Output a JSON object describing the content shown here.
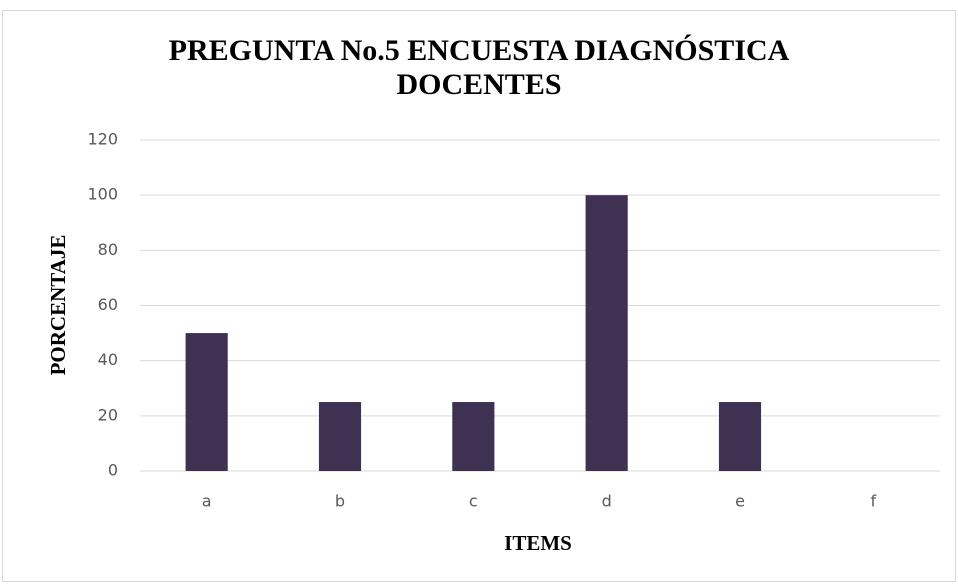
{
  "chart_data": {
    "type": "bar",
    "title": "PREGUNTA No.5 ENCUESTA DIAGNÓSTICA DOCENTES",
    "x_label": "ITEMS",
    "y_label": "PORCENTAJE",
    "categories": [
      "a",
      "b",
      "c",
      "d",
      "e",
      "f"
    ],
    "values": [
      50,
      25,
      25,
      100,
      25,
      0
    ],
    "color": "#3f3151",
    "ylim": [
      0,
      120
    ],
    "yticks": [
      0,
      20,
      40,
      60,
      80,
      100,
      120
    ],
    "grid": true
  }
}
